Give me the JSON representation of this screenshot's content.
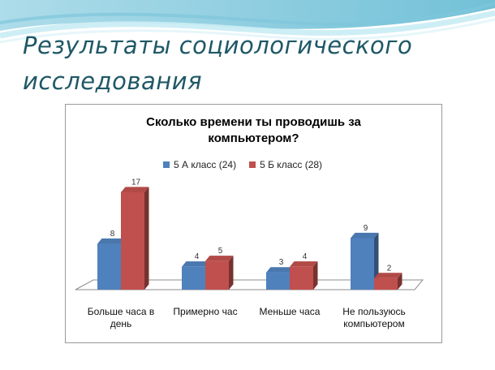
{
  "slide": {
    "title_line1": "Результаты социологического",
    "title_line2": "исследования"
  },
  "chart_data": {
    "type": "bar",
    "title_line1": "Сколько времени ты проводишь за",
    "title_line2": "компьютером?",
    "categories": [
      [
        "Больше часа в",
        "день"
      ],
      [
        "Примерно час"
      ],
      [
        "Меньше часа"
      ],
      [
        "Не пользуюсь",
        "компьютером"
      ]
    ],
    "series": [
      {
        "name": "5 А класс (24)",
        "values": [
          8,
          4,
          3,
          9
        ],
        "color": "#4f81bd"
      },
      {
        "name": "5 Б класс (28)",
        "values": [
          17,
          5,
          4,
          2
        ],
        "color": "#c0504d"
      }
    ],
    "ylim": [
      0,
      17
    ],
    "grid": false,
    "legend": "top-center",
    "style": "3d-clustered-column"
  }
}
